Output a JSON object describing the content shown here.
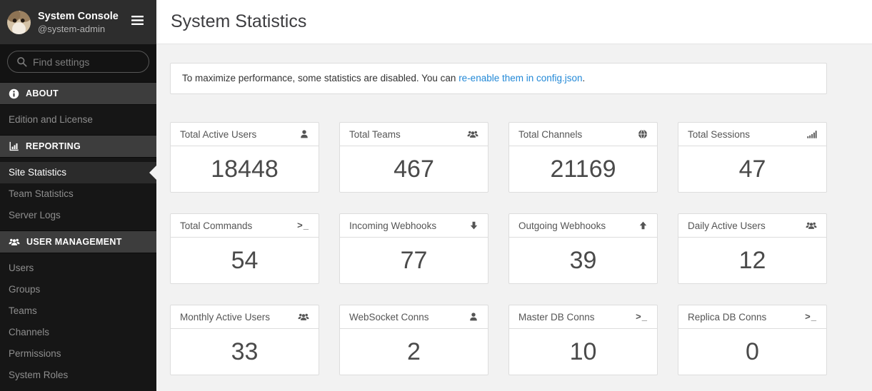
{
  "sidebar": {
    "header": {
      "title": "System Console",
      "subtitle": "@system-admin"
    },
    "search": {
      "placeholder": "Find settings"
    },
    "sections": [
      {
        "label": "ABOUT",
        "icon": "info-circle",
        "items": [
          {
            "label": "Edition and License",
            "active": false
          }
        ]
      },
      {
        "label": "REPORTING",
        "icon": "bar-chart",
        "items": [
          {
            "label": "Site Statistics",
            "active": true
          },
          {
            "label": "Team Statistics",
            "active": false
          },
          {
            "label": "Server Logs",
            "active": false
          }
        ]
      },
      {
        "label": "USER MANAGEMENT",
        "icon": "users",
        "items": [
          {
            "label": "Users",
            "active": false
          },
          {
            "label": "Groups",
            "active": false
          },
          {
            "label": "Teams",
            "active": false
          },
          {
            "label": "Channels",
            "active": false
          },
          {
            "label": "Permissions",
            "active": false
          },
          {
            "label": "System Roles",
            "active": false
          }
        ]
      }
    ]
  },
  "main": {
    "title": "System Statistics",
    "banner": {
      "text_before": "To maximize performance, some statistics are disabled. You can ",
      "link_label": "re-enable them in config.json",
      "text_after": "."
    },
    "stats": [
      {
        "label": "Total Active Users",
        "icon": "user",
        "value": "18448"
      },
      {
        "label": "Total Teams",
        "icon": "users",
        "value": "467"
      },
      {
        "label": "Total Channels",
        "icon": "globe",
        "value": "21169"
      },
      {
        "label": "Total Sessions",
        "icon": "signal",
        "value": "47"
      },
      {
        "label": "Total Commands",
        "icon": "terminal",
        "value": "54"
      },
      {
        "label": "Incoming Webhooks",
        "icon": "arrow-down",
        "value": "77"
      },
      {
        "label": "Outgoing Webhooks",
        "icon": "arrow-up",
        "value": "39"
      },
      {
        "label": "Daily Active Users",
        "icon": "users",
        "value": "12"
      },
      {
        "label": "Monthly Active Users",
        "icon": "users",
        "value": "33"
      },
      {
        "label": "WebSocket Conns",
        "icon": "user",
        "value": "2"
      },
      {
        "label": "Master DB Conns",
        "icon": "terminal",
        "value": "10"
      },
      {
        "label": "Replica DB Conns",
        "icon": "terminal",
        "value": "0"
      }
    ]
  },
  "colors": {
    "accent_link": "#2389d7",
    "sidebar_bg": "#161616",
    "sidebar_header_bg": "#2d2d2d",
    "section_header_bg": "#3d3d3d",
    "active_item_bg": "#2b2b2b",
    "content_bg": "#f2f2f2"
  }
}
